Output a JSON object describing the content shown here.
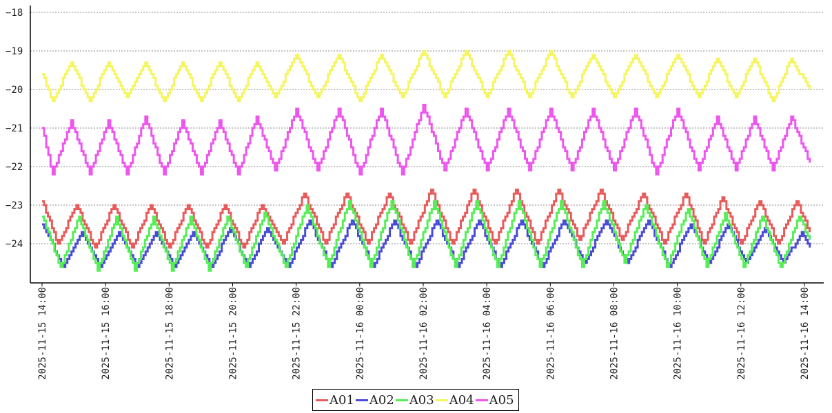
{
  "chart_data": {
    "type": "line",
    "title": "",
    "xlabel": "",
    "ylabel": "",
    "ylim": [
      -24.95,
      -17.95
    ],
    "xlim": [
      "2025-11-15 13:45",
      "2025-11-16 14:25"
    ],
    "yticks": [
      -18,
      -19,
      -20,
      -21,
      -22,
      -23,
      -24
    ],
    "ytick_labels": [
      "−18",
      "−19",
      "−20",
      "−21",
      "−22",
      "−23",
      "−24"
    ],
    "xticks": [
      "2025-11-15 14:00",
      "2025-11-15 16:00",
      "2025-11-15 18:00",
      "2025-11-15 20:00",
      "2025-11-15 22:00",
      "2025-11-16 00:00",
      "2025-11-16 02:00",
      "2025-11-16 04:00",
      "2025-11-16 06:00",
      "2025-11-16 08:00",
      "2025-11-16 10:00",
      "2025-11-16 12:00",
      "2025-11-16 14:00"
    ],
    "grid": "horizontal dotted",
    "legend_position": "bottom-center",
    "series": [
      {
        "name": "A01",
        "color": "#e85a5a",
        "step": true,
        "x": [
          "2025-11-15 14:00",
          "2025-11-15 14:30",
          "2025-11-15 15:05",
          "2025-11-15 15:40",
          "2025-11-15 16:15",
          "2025-11-15 16:50",
          "2025-11-15 17:25",
          "2025-11-15 18:00",
          "2025-11-15 18:35",
          "2025-11-15 19:10",
          "2025-11-15 19:45",
          "2025-11-15 20:20",
          "2025-11-15 20:55",
          "2025-11-15 21:35",
          "2025-11-15 22:15",
          "2025-11-15 22:55",
          "2025-11-15 23:35",
          "2025-11-16 00:15",
          "2025-11-16 00:55",
          "2025-11-16 01:35",
          "2025-11-16 02:15",
          "2025-11-16 02:55",
          "2025-11-16 03:35",
          "2025-11-16 04:15",
          "2025-11-16 04:55",
          "2025-11-16 05:35",
          "2025-11-16 06:15",
          "2025-11-16 06:55",
          "2025-11-16 07:35",
          "2025-11-16 08:15",
          "2025-11-16 08:55",
          "2025-11-16 09:35",
          "2025-11-16 10:15",
          "2025-11-16 10:50",
          "2025-11-16 11:25",
          "2025-11-16 12:00",
          "2025-11-16 12:35",
          "2025-11-16 13:10",
          "2025-11-16 13:45",
          "2025-11-16 14:10"
        ],
        "y": [
          -22.9,
          -24.0,
          -23.0,
          -24.1,
          -23.0,
          -24.1,
          -23.0,
          -24.1,
          -23.0,
          -24.1,
          -23.0,
          -24.1,
          -23.0,
          -24.0,
          -22.7,
          -24.0,
          -22.7,
          -24.0,
          -22.7,
          -24.0,
          -22.6,
          -24.0,
          -22.6,
          -24.0,
          -22.6,
          -24.0,
          -22.6,
          -23.9,
          -22.6,
          -23.9,
          -22.7,
          -24.0,
          -22.7,
          -24.0,
          -22.8,
          -24.0,
          -22.9,
          -24.0,
          -22.9,
          -23.7
        ]
      },
      {
        "name": "A02",
        "color": "#4a4ad8",
        "step": true,
        "x": [
          "2025-11-15 14:00",
          "2025-11-15 14:40",
          "2025-11-15 15:15",
          "2025-11-15 15:50",
          "2025-11-15 16:25",
          "2025-11-15 17:00",
          "2025-11-15 17:35",
          "2025-11-15 18:10",
          "2025-11-15 18:45",
          "2025-11-15 19:20",
          "2025-11-15 19:55",
          "2025-11-15 20:30",
          "2025-11-15 21:05",
          "2025-11-15 21:45",
          "2025-11-15 22:25",
          "2025-11-15 23:05",
          "2025-11-15 23:45",
          "2025-11-16 00:25",
          "2025-11-16 01:05",
          "2025-11-16 01:45",
          "2025-11-16 02:25",
          "2025-11-16 03:05",
          "2025-11-16 03:45",
          "2025-11-16 04:25",
          "2025-11-16 05:05",
          "2025-11-16 05:45",
          "2025-11-16 06:25",
          "2025-11-16 07:05",
          "2025-11-16 07:45",
          "2025-11-16 08:25",
          "2025-11-16 09:05",
          "2025-11-16 09:45",
          "2025-11-16 10:25",
          "2025-11-16 11:00",
          "2025-11-16 11:35",
          "2025-11-16 12:10",
          "2025-11-16 12:45",
          "2025-11-16 13:20",
          "2025-11-16 13:55",
          "2025-11-16 14:10"
        ],
        "y": [
          -23.5,
          -24.6,
          -23.7,
          -24.6,
          -23.7,
          -24.6,
          -23.7,
          -24.6,
          -23.7,
          -24.6,
          -23.6,
          -24.6,
          -23.6,
          -24.6,
          -23.4,
          -24.6,
          -23.4,
          -24.6,
          -23.4,
          -24.6,
          -23.4,
          -24.6,
          -23.4,
          -24.6,
          -23.4,
          -24.6,
          -23.4,
          -24.5,
          -23.4,
          -24.5,
          -23.4,
          -24.6,
          -23.5,
          -24.5,
          -23.5,
          -24.5,
          -23.6,
          -24.5,
          -23.7,
          -24.1
        ]
      },
      {
        "name": "A03",
        "color": "#55ee55",
        "step": true,
        "x": [
          "2025-11-15 14:00",
          "2025-11-15 14:35",
          "2025-11-15 15:10",
          "2025-11-15 15:45",
          "2025-11-15 16:20",
          "2025-11-15 16:55",
          "2025-11-15 17:30",
          "2025-11-15 18:05",
          "2025-11-15 18:40",
          "2025-11-15 19:15",
          "2025-11-15 19:50",
          "2025-11-15 20:25",
          "2025-11-15 21:00",
          "2025-11-15 21:40",
          "2025-11-15 22:20",
          "2025-11-15 23:00",
          "2025-11-15 23:40",
          "2025-11-16 00:20",
          "2025-11-16 01:00",
          "2025-11-16 01:40",
          "2025-11-16 02:20",
          "2025-11-16 03:00",
          "2025-11-16 03:40",
          "2025-11-16 04:20",
          "2025-11-16 05:00",
          "2025-11-16 05:40",
          "2025-11-16 06:20",
          "2025-11-16 07:00",
          "2025-11-16 07:40",
          "2025-11-16 08:20",
          "2025-11-16 09:00",
          "2025-11-16 09:40",
          "2025-11-16 10:20",
          "2025-11-16 10:55",
          "2025-11-16 11:30",
          "2025-11-16 12:05",
          "2025-11-16 12:40",
          "2025-11-16 13:15",
          "2025-11-16 13:50",
          "2025-11-16 14:10"
        ],
        "y": [
          -23.3,
          -24.6,
          -23.3,
          -24.7,
          -23.3,
          -24.7,
          -23.3,
          -24.7,
          -23.3,
          -24.7,
          -23.3,
          -24.6,
          -23.2,
          -24.6,
          -23.0,
          -24.6,
          -22.9,
          -24.6,
          -22.9,
          -24.6,
          -22.9,
          -24.6,
          -22.9,
          -24.6,
          -22.9,
          -24.6,
          -22.9,
          -24.6,
          -22.9,
          -24.5,
          -23.0,
          -24.6,
          -23.1,
          -24.6,
          -23.2,
          -24.6,
          -23.3,
          -24.6,
          -23.3,
          -23.9
        ]
      },
      {
        "name": "A04",
        "color": "#f5f560",
        "step": true,
        "x": [
          "2025-11-15 14:00",
          "2025-11-15 14:20",
          "2025-11-15 14:55",
          "2025-11-15 15:30",
          "2025-11-15 16:05",
          "2025-11-15 16:40",
          "2025-11-15 17:15",
          "2025-11-15 17:50",
          "2025-11-15 18:25",
          "2025-11-15 19:00",
          "2025-11-15 19:35",
          "2025-11-15 20:10",
          "2025-11-15 20:45",
          "2025-11-15 21:20",
          "2025-11-15 22:00",
          "2025-11-15 22:40",
          "2025-11-15 23:20",
          "2025-11-16 00:00",
          "2025-11-16 00:40",
          "2025-11-16 01:20",
          "2025-11-16 02:00",
          "2025-11-16 02:40",
          "2025-11-16 03:20",
          "2025-11-16 04:00",
          "2025-11-16 04:40",
          "2025-11-16 05:20",
          "2025-11-16 06:00",
          "2025-11-16 06:40",
          "2025-11-16 07:20",
          "2025-11-16 08:00",
          "2025-11-16 08:40",
          "2025-11-16 09:20",
          "2025-11-16 10:00",
          "2025-11-16 10:40",
          "2025-11-16 11:15",
          "2025-11-16 11:50",
          "2025-11-16 12:25",
          "2025-11-16 13:00",
          "2025-11-16 13:35",
          "2025-11-16 14:10"
        ],
        "y": [
          -19.6,
          -20.3,
          -19.3,
          -20.3,
          -19.3,
          -20.2,
          -19.3,
          -20.3,
          -19.3,
          -20.3,
          -19.3,
          -20.3,
          -19.3,
          -20.2,
          -19.1,
          -20.2,
          -19.1,
          -20.3,
          -19.1,
          -20.2,
          -19.0,
          -20.2,
          -19.0,
          -20.2,
          -19.0,
          -20.2,
          -19.0,
          -20.2,
          -19.1,
          -20.2,
          -19.1,
          -20.2,
          -19.1,
          -20.2,
          -19.2,
          -20.2,
          -19.2,
          -20.3,
          -19.2,
          -20.0
        ]
      },
      {
        "name": "A05",
        "color": "#ee55ee",
        "step": true,
        "x": [
          "2025-11-15 14:00",
          "2025-11-15 14:20",
          "2025-11-15 14:55",
          "2025-11-15 15:30",
          "2025-11-15 16:05",
          "2025-11-15 16:40",
          "2025-11-15 17:15",
          "2025-11-15 17:50",
          "2025-11-15 18:25",
          "2025-11-15 19:00",
          "2025-11-15 19:35",
          "2025-11-15 20:10",
          "2025-11-15 20:45",
          "2025-11-15 21:20",
          "2025-11-15 22:00",
          "2025-11-15 22:40",
          "2025-11-15 23:20",
          "2025-11-16 00:00",
          "2025-11-16 00:40",
          "2025-11-16 01:20",
          "2025-11-16 02:00",
          "2025-11-16 02:40",
          "2025-11-16 03:20",
          "2025-11-16 04:00",
          "2025-11-16 04:40",
          "2025-11-16 05:20",
          "2025-11-16 06:00",
          "2025-11-16 06:40",
          "2025-11-16 07:20",
          "2025-11-16 08:00",
          "2025-11-16 08:40",
          "2025-11-16 09:20",
          "2025-11-16 10:00",
          "2025-11-16 10:40",
          "2025-11-16 11:15",
          "2025-11-16 11:50",
          "2025-11-16 12:25",
          "2025-11-16 13:00",
          "2025-11-16 13:35",
          "2025-11-16 14:10"
        ],
        "y": [
          -21.0,
          -22.2,
          -20.8,
          -22.2,
          -20.8,
          -22.2,
          -20.7,
          -22.2,
          -20.8,
          -22.2,
          -20.8,
          -22.2,
          -20.7,
          -22.1,
          -20.5,
          -22.1,
          -20.5,
          -22.2,
          -20.5,
          -22.2,
          -20.4,
          -22.1,
          -20.5,
          -22.1,
          -20.5,
          -22.1,
          -20.5,
          -22.1,
          -20.5,
          -22.1,
          -20.5,
          -22.2,
          -20.5,
          -22.1,
          -20.7,
          -22.1,
          -20.7,
          -22.1,
          -20.7,
          -21.9
        ]
      }
    ]
  }
}
